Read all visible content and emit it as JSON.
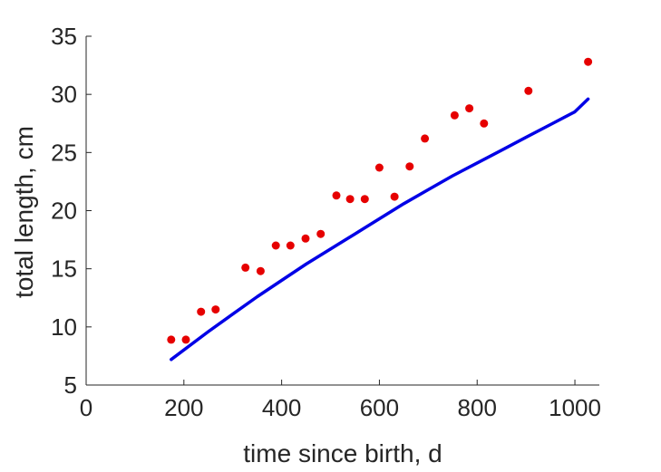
{
  "chart_data": {
    "type": "scatter",
    "title": "",
    "xlabel": "time since birth, d",
    "ylabel": "total length, cm",
    "xlim": [
      0,
      1050
    ],
    "ylim": [
      5,
      35
    ],
    "xticks": [
      0,
      200,
      400,
      600,
      800,
      1000
    ],
    "yticks": [
      5,
      10,
      15,
      20,
      25,
      30,
      35
    ],
    "grid": false,
    "legend": "none",
    "series": [
      {
        "kind": "scatter",
        "color": "#e60000",
        "x": [
          174,
          204,
          235,
          265,
          326,
          357,
          388,
          418,
          449,
          480,
          512,
          540,
          570,
          600,
          631,
          662,
          693,
          754,
          784,
          814,
          905,
          1027
        ],
        "y": [
          8.9,
          8.9,
          11.3,
          11.5,
          15.1,
          14.8,
          17.0,
          17.0,
          17.6,
          18.0,
          21.3,
          21.0,
          21.0,
          23.7,
          21.2,
          23.8,
          26.2,
          28.2,
          28.8,
          27.5,
          30.3,
          32.8
        ]
      },
      {
        "kind": "line",
        "color": "#0000e6",
        "x": [
          174,
          250,
          300,
          350,
          400,
          450,
          500,
          550,
          600,
          650,
          700,
          750,
          800,
          850,
          900,
          950,
          1000,
          1027
        ],
        "y": [
          7.2,
          9.6,
          11.1,
          12.6,
          14.0,
          15.4,
          16.7,
          18.0,
          19.3,
          20.6,
          21.8,
          23.0,
          24.1,
          25.2,
          26.3,
          27.4,
          28.5,
          29.6
        ]
      }
    ]
  }
}
